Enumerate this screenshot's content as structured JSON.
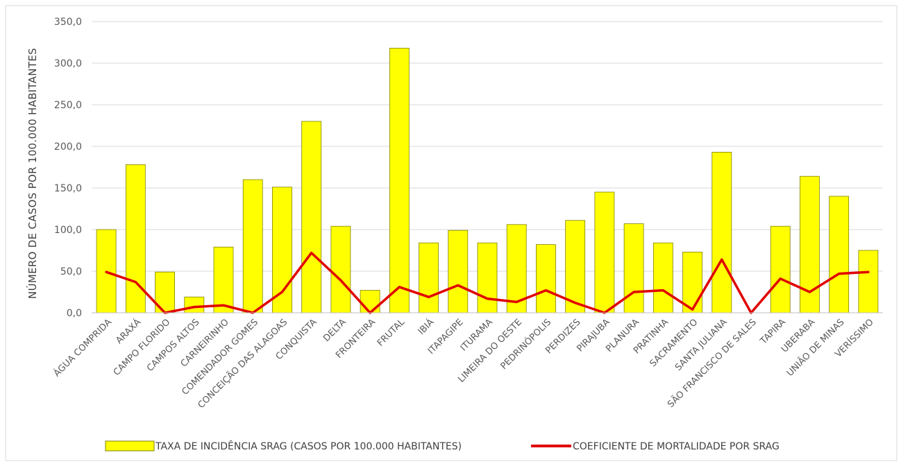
{
  "chart_data": {
    "type": "bar",
    "title": "",
    "xlabel": "",
    "ylabel": "NÚMERO DE CASOS POR 100.000 HABITANTES",
    "ylim": [
      0,
      350
    ],
    "yticks": [
      "0,0",
      "50,0",
      "100,0",
      "150,0",
      "200,0",
      "250,0",
      "300,0",
      "350,0"
    ],
    "grid": true,
    "legend_position": "bottom",
    "categories": [
      "ÁGUA COMPRIDA",
      "ARAXÁ",
      "CAMPO FLORIDO",
      "CAMPOS ALTOS",
      "CARNEIRINHO",
      "COMENDADOR GOMES",
      "CONCEIÇÃO DAS ALAGOAS",
      "CONQUISTA",
      "DELTA",
      "FRONTEIRA",
      "FRUTAL",
      "IBIÁ",
      "ITAPAGIPE",
      "ITURAMA",
      "LIMEIRA DO OESTE",
      "PEDRINÓPOLIS",
      "PERDIZES",
      "PIRAJUBA",
      "PLANURA",
      "PRATINHA",
      "SACRAMENTO",
      "SANTA JULIANA",
      "SÃO FRANCISCO DE SALES",
      "TAPIRA",
      "UBERABA",
      "UNIÃO DE MINAS",
      "VERÍSSIMO"
    ],
    "series": [
      {
        "name": "TAXA DE INCIDÊNCIA SRAG  (CASOS POR 100.000 HABITANTES)",
        "type": "bar",
        "color": "#ffff00",
        "values": [
          100,
          178,
          49,
          19,
          79,
          160,
          151,
          230,
          104,
          27,
          318,
          84,
          99,
          84,
          106,
          82,
          111,
          145,
          107,
          84,
          73,
          193,
          0,
          104,
          164,
          140,
          75
        ]
      },
      {
        "name": "COEFICIENTE DE MORTALIDADE POR SRAG",
        "type": "line",
        "color": "#e00000",
        "values": [
          49,
          37,
          0,
          7,
          9,
          0,
          25,
          72,
          39,
          0,
          31,
          19,
          33,
          17,
          13,
          27,
          12,
          0,
          25,
          27,
          4,
          64,
          0,
          41,
          25,
          47,
          49
        ]
      }
    ]
  }
}
